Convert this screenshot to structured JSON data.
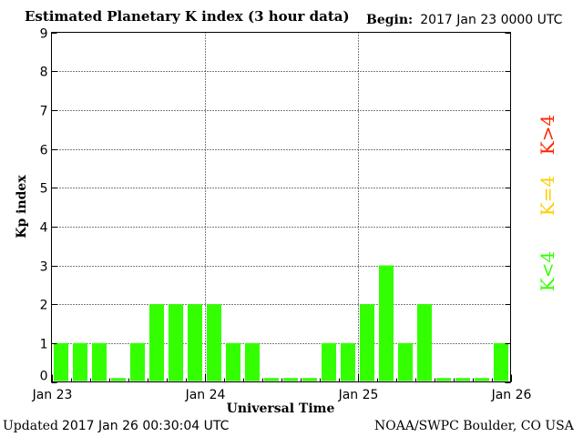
{
  "header": {
    "title": "Estimated Planetary K index (3 hour data)",
    "begin_label": "Begin:",
    "begin_value": "2017 Jan 23 0000 UTC"
  },
  "footer": {
    "updated_label": "Updated",
    "updated_value": "2017 Jan 26 00:30:04 UTC",
    "credit": "NOAA/SWPC Boulder, CO USA"
  },
  "legend": [
    {
      "label": "K<4",
      "color": "#33ff00"
    },
    {
      "label": "K=4",
      "color": "#ffcc00"
    },
    {
      "label": "K>4",
      "color": "#ff2200"
    }
  ],
  "chart_data": {
    "type": "bar",
    "title": "Estimated Planetary K index (3 hour data)",
    "xlabel": "Universal Time",
    "ylabel": "Kp index",
    "ylim": [
      0,
      9
    ],
    "yticks": [
      0,
      1,
      2,
      3,
      4,
      5,
      6,
      7,
      8,
      9
    ],
    "x_tick_labels": [
      "Jan 23",
      "Jan 24",
      "Jan 25",
      "Jan 26"
    ],
    "grid": true,
    "bar_color": "#33ff00",
    "values": [
      1,
      1,
      1,
      0,
      1,
      2,
      2,
      2,
      2,
      1,
      1,
      0,
      0,
      0,
      1,
      1,
      2,
      3,
      1,
      2,
      0,
      0,
      0,
      1
    ]
  }
}
